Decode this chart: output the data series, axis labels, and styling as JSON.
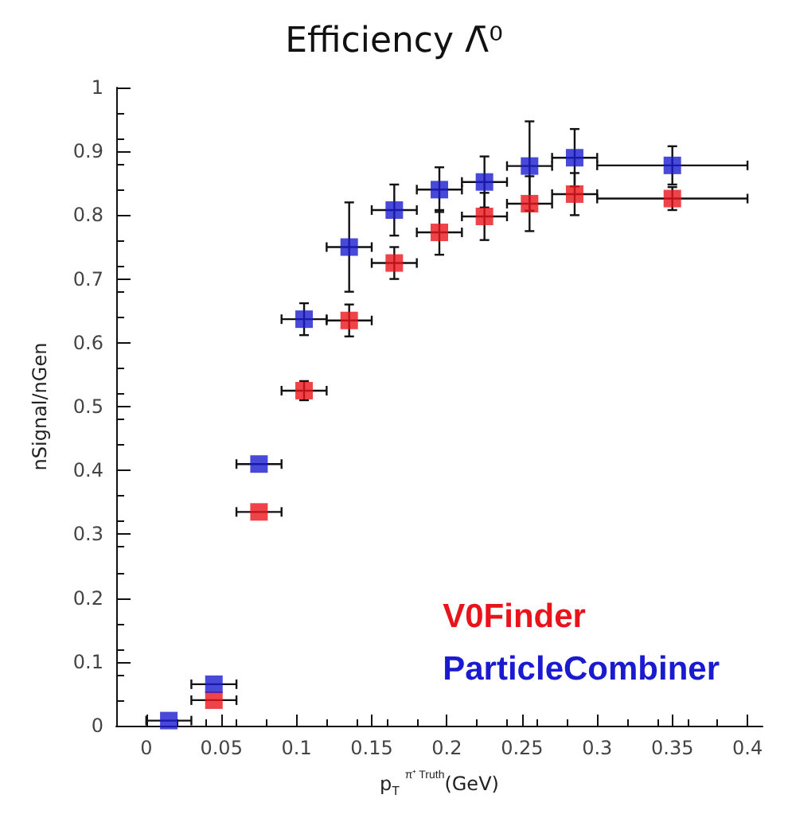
{
  "chart_data": {
    "type": "scatter",
    "title": "Efficiency Λ̄⁰",
    "xlabel": "p$_{T}$ $^{π⁺ Truth}$(GeV)",
    "ylabel": "nSignal/nGen",
    "x": [
      0.015,
      0.045,
      0.075,
      0.105,
      0.135,
      0.165,
      0.195,
      0.225,
      0.255,
      0.285,
      0.35
    ],
    "series": [
      {
        "name": "V0Finder",
        "color": "#e8141c",
        "values": [
          null,
          0.04,
          0.335,
          0.525,
          0.635,
          0.725,
          0.773,
          0.798,
          0.818,
          0.833,
          0.826
        ],
        "errors": [
          null,
          null,
          null,
          0.015,
          0.025,
          0.025,
          0.035,
          0.037,
          0.043,
          0.033,
          0.018
        ],
        "xerrors": [
          null,
          0.015,
          0.015,
          0.015,
          0.015,
          0.015,
          0.015,
          0.015,
          0.015,
          0.015,
          0.05
        ]
      },
      {
        "name": "ParticleCombiner",
        "color": "#1a1ad0",
        "values": [
          0.008,
          0.065,
          0.41,
          0.637,
          0.75,
          0.808,
          0.84,
          0.852,
          0.877,
          0.89,
          0.878
        ],
        "errors": [
          null,
          null,
          null,
          0.025,
          0.07,
          0.04,
          0.035,
          0.04,
          0.07,
          0.045,
          0.03
        ],
        "xerrors": [
          0.015,
          0.015,
          0.015,
          0.015,
          0.015,
          0.015,
          0.015,
          0.015,
          0.015,
          0.015,
          0.05
        ]
      }
    ],
    "xlim": [
      -0.02,
      0.41
    ],
    "xticks": [
      0,
      0.05,
      0.1,
      0.15,
      0.2,
      0.25,
      0.3,
      0.35,
      0.4
    ],
    "ylim": [
      0,
      1
    ],
    "yticks": [
      0,
      0.1,
      0.2,
      0.3,
      0.4,
      0.5,
      0.6,
      0.7,
      0.8,
      0.9,
      1
    ],
    "grid": false,
    "legend": "bottom right",
    "marker": "square"
  }
}
